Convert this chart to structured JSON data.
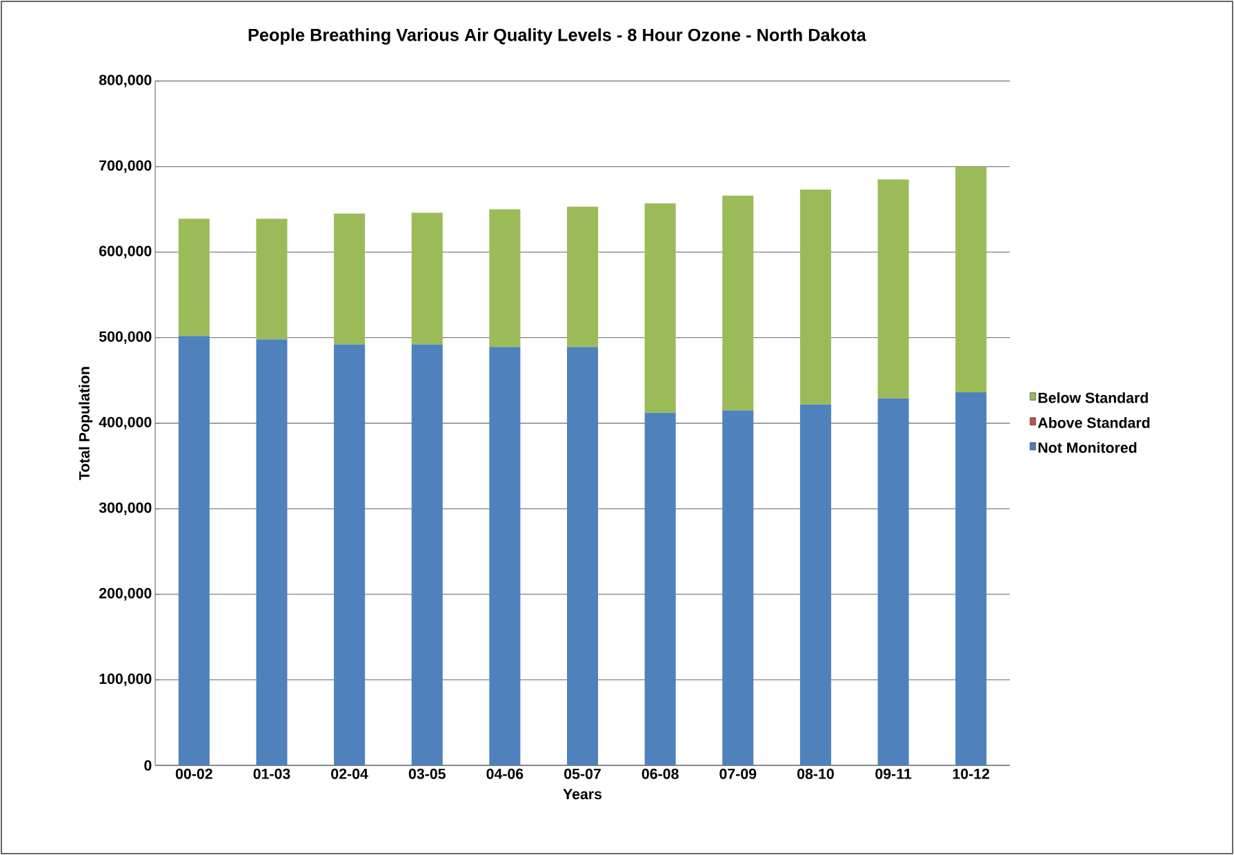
{
  "chart_data": {
    "type": "bar",
    "stacked": true,
    "title": "People Breathing Various Air Quality Levels - 8 Hour Ozone - North Dakota",
    "xlabel": "Years",
    "ylabel": "Total Population",
    "categories": [
      "00-02",
      "01-03",
      "02-04",
      "03-05",
      "04-06",
      "05-07",
      "06-08",
      "07-09",
      "08-10",
      "09-11",
      "10-12"
    ],
    "series": [
      {
        "name": "Not Monitored",
        "color": "#4f81bd",
        "values": [
          502000,
          498000,
          492000,
          492000,
          489000,
          489000,
          412000,
          415000,
          422000,
          429000,
          436000
        ]
      },
      {
        "name": "Above Standard",
        "color": "#c0504d",
        "values": [
          0,
          0,
          0,
          0,
          0,
          0,
          0,
          0,
          0,
          0,
          0
        ]
      },
      {
        "name": "Below Standard",
        "color": "#9bbb59",
        "values": [
          137000,
          141000,
          153000,
          154000,
          161000,
          164000,
          245000,
          251000,
          251000,
          256000,
          264000
        ]
      }
    ],
    "ylim": [
      0,
      800000
    ],
    "yticks": [
      {
        "value": 0,
        "label": "0"
      },
      {
        "value": 100000,
        "label": "100,000"
      },
      {
        "value": 200000,
        "label": "200,000"
      },
      {
        "value": 300000,
        "label": "300,000"
      },
      {
        "value": 400000,
        "label": "400,000"
      },
      {
        "value": 500000,
        "label": "500,000"
      },
      {
        "value": 600000,
        "label": "600,000"
      },
      {
        "value": 700000,
        "label": "700,000"
      },
      {
        "value": 800000,
        "label": "800,000"
      }
    ],
    "grid": "y",
    "legend": "right"
  }
}
